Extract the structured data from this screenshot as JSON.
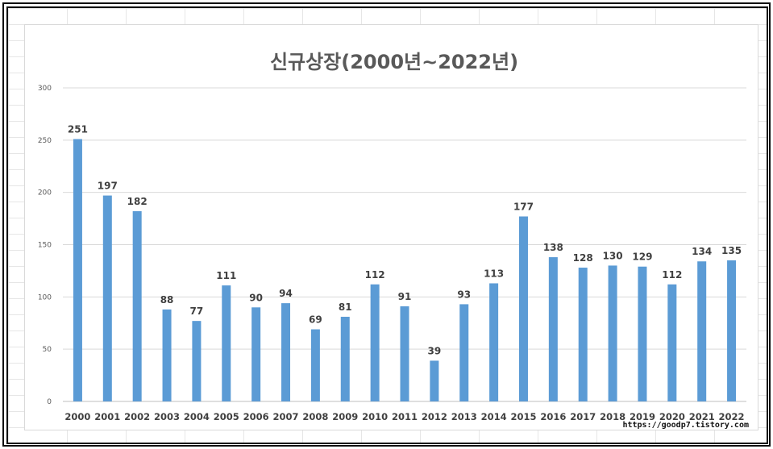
{
  "chart_data": {
    "type": "bar",
    "title": "신규상장(2000년~2022년)",
    "xlabel": "",
    "ylabel": "",
    "categories": [
      "2000",
      "2001",
      "2002",
      "2003",
      "2004",
      "2005",
      "2006",
      "2007",
      "2008",
      "2009",
      "2010",
      "2011",
      "2012",
      "2013",
      "2014",
      "2015",
      "2016",
      "2017",
      "2018",
      "2019",
      "2020",
      "2021",
      "2022"
    ],
    "values": [
      251,
      197,
      182,
      88,
      77,
      111,
      90,
      94,
      69,
      81,
      112,
      91,
      39,
      93,
      113,
      177,
      138,
      128,
      130,
      129,
      112,
      134,
      135
    ],
    "ylim": [
      0,
      300
    ],
    "yticks": [
      0,
      50,
      100,
      150,
      200,
      250,
      300
    ],
    "grid": true,
    "data_labels": true,
    "bar_color": "#5b9bd5"
  },
  "watermark": "https://goodp7.tistory.com"
}
